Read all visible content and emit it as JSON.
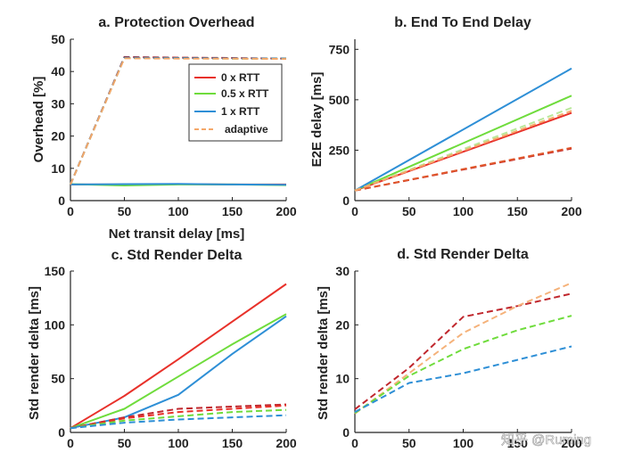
{
  "watermark": "知乎 @Ruming",
  "chart_data": [
    {
      "type": "line",
      "title": "a. Protection Overhead",
      "xlabel": "Net transit delay [ms]",
      "ylabel": "Overhead [%]",
      "xlim": [
        0,
        200
      ],
      "ylim": [
        0,
        50
      ],
      "xticks": [
        0,
        50,
        100,
        150,
        200
      ],
      "yticks": [
        0,
        10,
        20,
        30,
        40,
        50
      ],
      "grid": false,
      "legend": {
        "position": "top-right",
        "entries": [
          "0 x RTT",
          "0.5 x RTT",
          "1 x RTT",
          "adaptive"
        ]
      },
      "series": [
        {
          "name": "0 x RTT",
          "color": "#e8312a",
          "style": "solid",
          "x": [
            0,
            50,
            100,
            150,
            200
          ],
          "y": [
            5,
            5,
            5.1,
            5,
            5
          ]
        },
        {
          "name": "0.5 x RTT",
          "color": "#6fdc3c",
          "style": "solid",
          "x": [
            0,
            50,
            100,
            150,
            200
          ],
          "y": [
            5.1,
            4.7,
            5,
            5,
            4.8
          ]
        },
        {
          "name": "1 x RTT",
          "color": "#2e8fd6",
          "style": "solid",
          "x": [
            0,
            50,
            100,
            150,
            200
          ],
          "y": [
            5,
            5.1,
            5.2,
            5,
            4.9
          ]
        },
        {
          "color": "#c0272d",
          "style": "dashed",
          "x": [
            0,
            50,
            100,
            150,
            200
          ],
          "y": [
            5,
            44.5,
            44.3,
            44.2,
            44
          ]
        },
        {
          "color": "#3ab54a",
          "style": "dashed",
          "x": [
            0,
            50,
            100,
            150,
            200
          ],
          "y": [
            5,
            44.2,
            44.1,
            44,
            44
          ]
        },
        {
          "color": "#1f77b4",
          "style": "dashed",
          "x": [
            0,
            50,
            100,
            150,
            200
          ],
          "y": [
            5,
            44.3,
            44.2,
            44.1,
            44
          ]
        },
        {
          "name": "adaptive",
          "color": "#f5a86a",
          "style": "dashed",
          "x": [
            0,
            50,
            100,
            150,
            200
          ],
          "y": [
            5,
            44.1,
            44,
            44,
            43.9
          ]
        }
      ]
    },
    {
      "type": "line",
      "title": "b. End To End Delay",
      "xlabel": "",
      "ylabel": "E2E delay [ms]",
      "xlim": [
        0,
        200
      ],
      "ylim": [
        0,
        800
      ],
      "xticks": [
        0,
        50,
        100,
        150,
        200
      ],
      "yticks": [
        0,
        250,
        500,
        750
      ],
      "grid": false,
      "series": [
        {
          "color": "#e8312a",
          "style": "solid",
          "x": [
            0,
            200
          ],
          "y": [
            50,
            435
          ]
        },
        {
          "color": "#6fdc3c",
          "style": "solid",
          "x": [
            0,
            200
          ],
          "y": [
            50,
            520
          ]
        },
        {
          "color": "#2e8fd6",
          "style": "solid",
          "x": [
            0,
            200
          ],
          "y": [
            50,
            655
          ]
        },
        {
          "color": "#c0272d",
          "style": "dashed",
          "x": [
            0,
            200
          ],
          "y": [
            50,
            258
          ]
        },
        {
          "color": "#e0562a",
          "style": "dashed",
          "x": [
            0,
            200
          ],
          "y": [
            50,
            262
          ]
        },
        {
          "color": "#b9e89a",
          "style": "dashed",
          "x": [
            0,
            200
          ],
          "y": [
            50,
            460
          ]
        },
        {
          "color": "#f5a86a",
          "style": "dashed",
          "x": [
            0,
            200
          ],
          "y": [
            50,
            445
          ]
        }
      ]
    },
    {
      "type": "line",
      "title": "c. Std Render Delta",
      "xlabel": "",
      "ylabel": "Std render delta [ms]",
      "xlim": [
        0,
        200
      ],
      "ylim": [
        0,
        150
      ],
      "xticks": [
        0,
        50,
        100,
        150,
        200
      ],
      "yticks": [
        0,
        50,
        100,
        150
      ],
      "grid": false,
      "series": [
        {
          "color": "#e8312a",
          "style": "solid",
          "x": [
            0,
            50,
            100,
            150,
            200
          ],
          "y": [
            4,
            34,
            68,
            103,
            138
          ]
        },
        {
          "color": "#6fdc3c",
          "style": "solid",
          "x": [
            0,
            50,
            100,
            150,
            200
          ],
          "y": [
            4,
            22,
            52,
            82,
            110
          ]
        },
        {
          "color": "#2e8fd6",
          "style": "solid",
          "x": [
            0,
            50,
            100,
            150,
            200
          ],
          "y": [
            4,
            14,
            35,
            73,
            108
          ]
        },
        {
          "color": "#c0272d",
          "style": "dashed",
          "x": [
            0,
            50,
            100,
            150,
            200
          ],
          "y": [
            4,
            14,
            22,
            24,
            26
          ]
        },
        {
          "color": "#e8312a",
          "style": "dashed",
          "x": [
            0,
            50,
            100,
            150,
            200
          ],
          "y": [
            4,
            13,
            19,
            22,
            25
          ]
        },
        {
          "color": "#6fdc3c",
          "style": "dashed",
          "x": [
            0,
            50,
            100,
            150,
            200
          ],
          "y": [
            4,
            11,
            15,
            19,
            21
          ]
        },
        {
          "color": "#2e8fd6",
          "style": "dashed",
          "x": [
            0,
            50,
            100,
            150,
            200
          ],
          "y": [
            4,
            9,
            12,
            14,
            16
          ]
        }
      ]
    },
    {
      "type": "line",
      "title": "d. Std Render Delta",
      "xlabel": "",
      "ylabel": "Std render delta [ms]",
      "xlim": [
        0,
        200
      ],
      "ylim": [
        0,
        30
      ],
      "xticks": [
        0,
        50,
        100,
        150,
        200
      ],
      "yticks": [
        0,
        10,
        20,
        30
      ],
      "grid": false,
      "series": [
        {
          "color": "#c0272d",
          "style": "dashed",
          "x": [
            0,
            50,
            100,
            150,
            200
          ],
          "y": [
            4.3,
            12,
            21.5,
            23.5,
            25.8
          ]
        },
        {
          "color": "#f5b27a",
          "style": "dashed",
          "x": [
            0,
            50,
            100,
            150,
            200
          ],
          "y": [
            3.5,
            11,
            18.5,
            23.5,
            27.8
          ]
        },
        {
          "color": "#6fdc3c",
          "style": "dashed",
          "x": [
            0,
            50,
            100,
            150,
            200
          ],
          "y": [
            3.6,
            10.5,
            15.5,
            19,
            21.7
          ]
        },
        {
          "color": "#2e8fd6",
          "style": "dashed",
          "x": [
            0,
            50,
            100,
            150,
            200
          ],
          "y": [
            3.8,
            9.2,
            11,
            13.5,
            16
          ]
        }
      ]
    }
  ]
}
